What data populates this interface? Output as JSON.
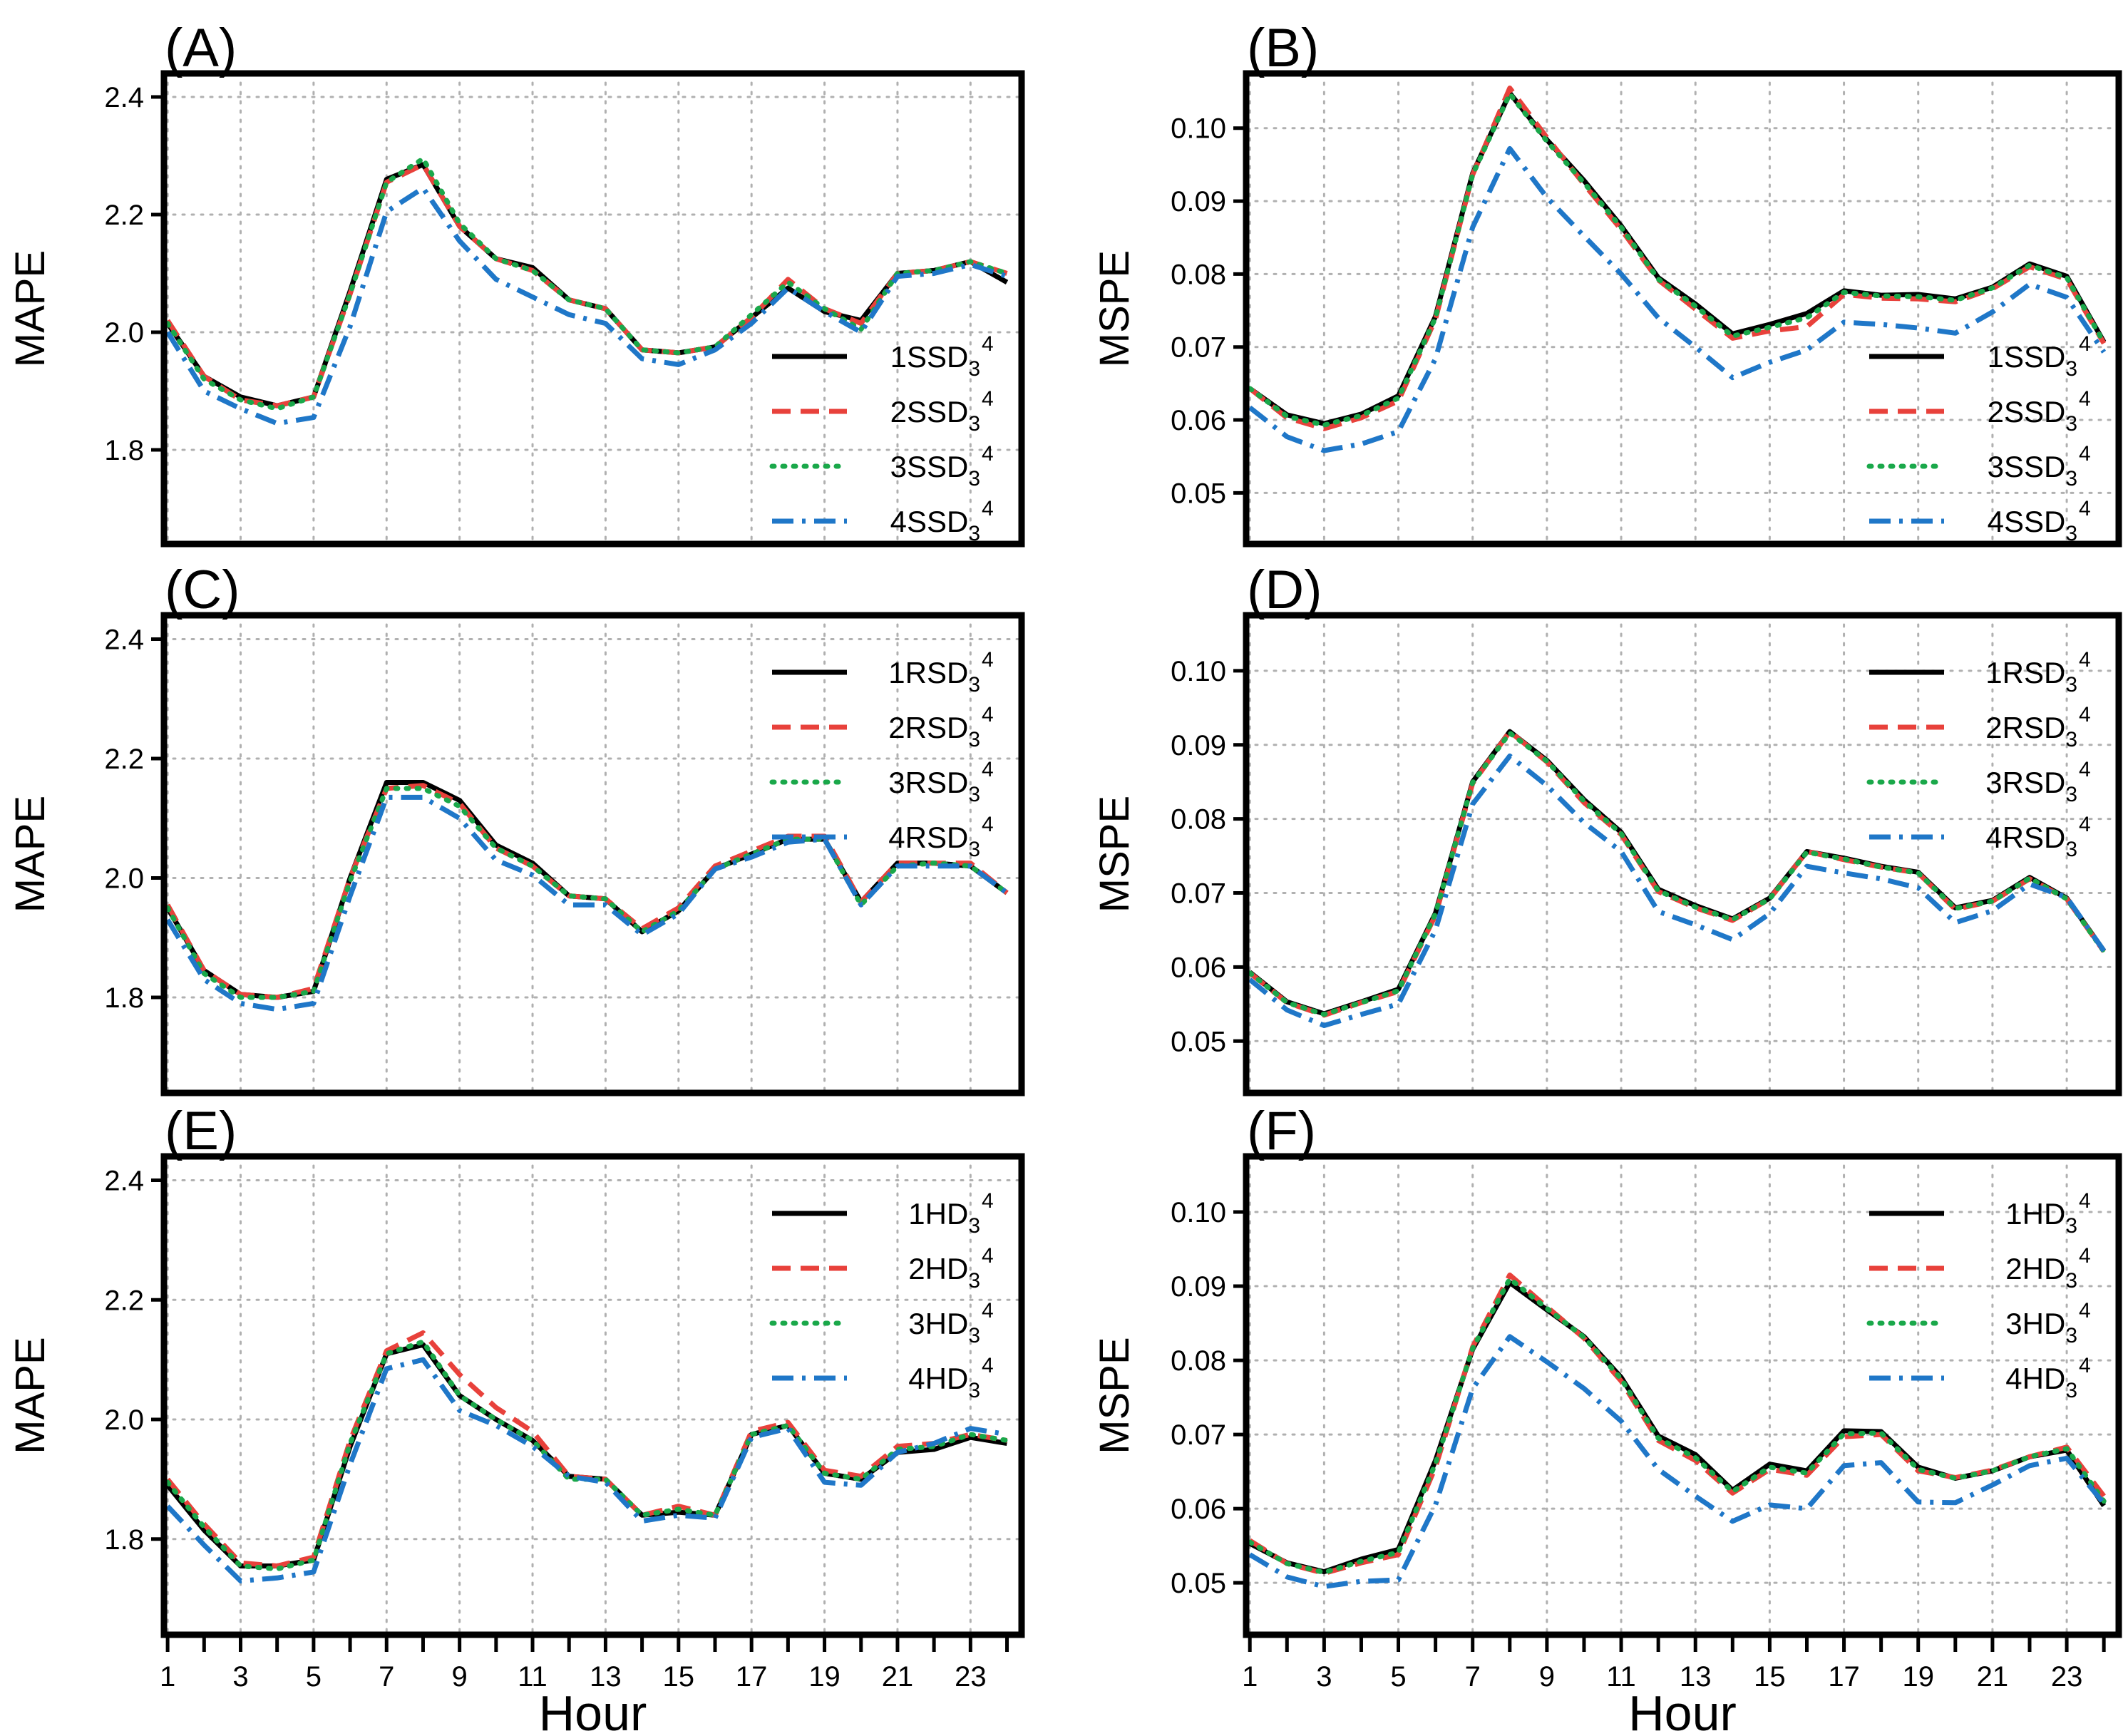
{
  "chart_data": [
    {
      "id": "A",
      "type": "line",
      "panel_label": "(A)",
      "ylabel": "MAPE",
      "xlabel": "",
      "ylim": [
        1.64,
        2.44
      ],
      "yticks": [
        "1.8",
        "2.0",
        "2.2",
        "2.4"
      ],
      "legend_position": "right",
      "x": [
        1,
        2,
        3,
        4,
        5,
        6,
        7,
        8,
        9,
        10,
        11,
        12,
        13,
        14,
        15,
        16,
        17,
        18,
        19,
        20,
        21,
        22,
        23,
        24
      ],
      "series": [
        {
          "name": "1SSD",
          "sup": "4",
          "sub": "3",
          "color": "#000000",
          "style": "solid",
          "values": [
            2.015,
            1.925,
            1.89,
            1.875,
            1.89,
            2.07,
            2.26,
            2.285,
            2.18,
            2.125,
            2.11,
            2.055,
            2.04,
            1.97,
            1.965,
            1.975,
            2.025,
            2.075,
            2.035,
            2.02,
            2.1,
            2.105,
            2.12,
            2.085
          ]
        },
        {
          "name": "2SSD",
          "sup": "4",
          "sub": "3",
          "color": "#e8413b",
          "style": "dashed",
          "values": [
            2.02,
            1.925,
            1.885,
            1.875,
            1.89,
            2.065,
            2.255,
            2.285,
            2.18,
            2.125,
            2.105,
            2.055,
            2.04,
            1.97,
            1.965,
            1.975,
            2.025,
            2.09,
            2.04,
            2.015,
            2.1,
            2.105,
            2.12,
            2.1
          ]
        },
        {
          "name": "3SSD",
          "sup": "4",
          "sub": "3",
          "color": "#1aa84a",
          "style": "dotted",
          "values": [
            2.015,
            1.92,
            1.885,
            1.87,
            1.89,
            2.065,
            2.255,
            2.295,
            2.185,
            2.125,
            2.105,
            2.055,
            2.04,
            1.97,
            1.965,
            1.975,
            2.03,
            2.085,
            2.04,
            2.005,
            2.1,
            2.105,
            2.12,
            2.1
          ]
        },
        {
          "name": "4SSD",
          "sup": "4",
          "sub": "3",
          "color": "#1f77c8",
          "style": "dashdot",
          "values": [
            2.0,
            1.9,
            1.87,
            1.845,
            1.855,
            2.01,
            2.205,
            2.245,
            2.155,
            2.09,
            2.06,
            2.03,
            2.015,
            1.955,
            1.945,
            1.97,
            2.015,
            2.075,
            2.035,
            2.0,
            2.095,
            2.1,
            2.115,
            2.095
          ]
        }
      ]
    },
    {
      "id": "B",
      "type": "line",
      "panel_label": "(B)",
      "ylabel": "MSPE",
      "xlabel": "",
      "ylim": [
        0.043,
        0.1075
      ],
      "yticks": [
        "0.05",
        "0.06",
        "0.07",
        "0.08",
        "0.09",
        "0.10"
      ],
      "legend_position": "right",
      "x": [
        1,
        2,
        3,
        4,
        5,
        6,
        7,
        8,
        9,
        10,
        11,
        12,
        13,
        14,
        15,
        16,
        17,
        18,
        19,
        20,
        21,
        22,
        23,
        24
      ],
      "series": [
        {
          "name": "1SSD",
          "sup": "4",
          "sub": "3",
          "color": "#000000",
          "style": "solid",
          "values": [
            0.0643,
            0.0607,
            0.0595,
            0.0608,
            0.0633,
            0.0742,
            0.0938,
            0.1048,
            0.0984,
            0.0928,
            0.0866,
            0.0795,
            0.0759,
            0.0718,
            0.0731,
            0.0746,
            0.0777,
            0.0771,
            0.0772,
            0.0766,
            0.0782,
            0.0814,
            0.0797,
            0.0707
          ]
        },
        {
          "name": "2SSD",
          "sup": "4",
          "sub": "3",
          "color": "#e8413b",
          "style": "dashed",
          "values": [
            0.0643,
            0.0603,
            0.0588,
            0.0603,
            0.0626,
            0.0738,
            0.0936,
            0.1055,
            0.0987,
            0.0923,
            0.0861,
            0.0792,
            0.0752,
            0.0712,
            0.0722,
            0.0728,
            0.0772,
            0.0767,
            0.0766,
            0.0762,
            0.078,
            0.081,
            0.0793,
            0.0705
          ]
        },
        {
          "name": "3SSD",
          "sup": "4",
          "sub": "3",
          "color": "#1aa84a",
          "style": "dotted",
          "values": [
            0.0643,
            0.0605,
            0.0593,
            0.0606,
            0.063,
            0.074,
            0.0936,
            0.1047,
            0.0982,
            0.0925,
            0.0864,
            0.0793,
            0.0756,
            0.0715,
            0.0727,
            0.074,
            0.0775,
            0.077,
            0.0769,
            0.0764,
            0.0781,
            0.0812,
            0.0795,
            0.0706
          ]
        },
        {
          "name": "4SSD",
          "sup": "4",
          "sub": "3",
          "color": "#1f77c8",
          "style": "dashdot",
          "values": [
            0.0617,
            0.0577,
            0.0558,
            0.0567,
            0.0584,
            0.0684,
            0.0864,
            0.0972,
            0.0905,
            0.0852,
            0.08,
            0.074,
            0.07,
            0.0658,
            0.0679,
            0.0696,
            0.0734,
            0.0731,
            0.0726,
            0.0719,
            0.0748,
            0.0786,
            0.0768,
            0.0693
          ]
        }
      ]
    },
    {
      "id": "C",
      "type": "line",
      "panel_label": "(C)",
      "ylabel": "MAPE",
      "xlabel": "",
      "ylim": [
        1.64,
        2.44
      ],
      "yticks": [
        "1.8",
        "2.0",
        "2.2",
        "2.4"
      ],
      "legend_position": "top-right",
      "x": [
        1,
        2,
        3,
        4,
        5,
        6,
        7,
        8,
        9,
        10,
        11,
        12,
        13,
        14,
        15,
        16,
        17,
        18,
        19,
        20,
        21,
        22,
        23,
        24
      ],
      "series": [
        {
          "name": "1RSD",
          "sup": "4",
          "sub": "3",
          "color": "#000000",
          "style": "solid",
          "values": [
            1.95,
            1.845,
            1.805,
            1.8,
            1.81,
            2.0,
            2.16,
            2.16,
            2.13,
            2.055,
            2.025,
            1.97,
            1.965,
            1.91,
            1.945,
            2.015,
            2.04,
            2.065,
            2.065,
            1.96,
            2.025,
            2.025,
            2.02,
            1.975
          ]
        },
        {
          "name": "2RSD",
          "sup": "4",
          "sub": "3",
          "color": "#e8413b",
          "style": "dashed",
          "values": [
            1.955,
            1.845,
            1.805,
            1.8,
            1.815,
            2.0,
            2.15,
            2.155,
            2.125,
            2.05,
            2.02,
            1.97,
            1.965,
            1.915,
            1.95,
            2.02,
            2.045,
            2.07,
            2.07,
            1.96,
            2.025,
            2.025,
            2.025,
            1.975
          ]
        },
        {
          "name": "3RSD",
          "sup": "4",
          "sub": "3",
          "color": "#1aa84a",
          "style": "dotted",
          "values": [
            1.95,
            1.84,
            1.8,
            1.8,
            1.81,
            1.995,
            2.15,
            2.15,
            2.12,
            2.05,
            2.02,
            1.97,
            1.965,
            1.91,
            1.945,
            2.015,
            2.04,
            2.065,
            2.065,
            1.955,
            2.02,
            2.025,
            2.02,
            1.975
          ]
        },
        {
          "name": "4RSD",
          "sup": "4",
          "sub": "3",
          "color": "#1f77c8",
          "style": "dashdot",
          "values": [
            1.93,
            1.83,
            1.79,
            1.78,
            1.79,
            1.97,
            2.135,
            2.135,
            2.1,
            2.03,
            2.005,
            1.955,
            1.955,
            1.905,
            1.94,
            2.015,
            2.035,
            2.06,
            2.065,
            1.955,
            2.02,
            2.02,
            2.02,
            1.975
          ]
        }
      ]
    },
    {
      "id": "D",
      "type": "line",
      "panel_label": "(D)",
      "ylabel": "MSPE",
      "xlabel": "",
      "ylim": [
        0.043,
        0.1075
      ],
      "yticks": [
        "0.05",
        "0.06",
        "0.07",
        "0.08",
        "0.09",
        "0.10"
      ],
      "legend_position": "top-right",
      "x": [
        1,
        2,
        3,
        4,
        5,
        6,
        7,
        8,
        9,
        10,
        11,
        12,
        13,
        14,
        15,
        16,
        17,
        18,
        19,
        20,
        21,
        22,
        23,
        24
      ],
      "series": [
        {
          "name": "1RSD",
          "sup": "4",
          "sub": "3",
          "color": "#000000",
          "style": "solid",
          "values": [
            0.0593,
            0.0553,
            0.0537,
            0.0553,
            0.057,
            0.0673,
            0.085,
            0.0918,
            0.0879,
            0.0826,
            0.0782,
            0.0705,
            0.0683,
            0.0665,
            0.0693,
            0.0756,
            0.0747,
            0.0736,
            0.0728,
            0.068,
            0.069,
            0.0721,
            0.0693,
            0.0622
          ]
        },
        {
          "name": "2RSD",
          "sup": "4",
          "sub": "3",
          "color": "#e8413b",
          "style": "dashed",
          "values": [
            0.0592,
            0.0552,
            0.0535,
            0.0552,
            0.0567,
            0.067,
            0.0848,
            0.0918,
            0.0877,
            0.0822,
            0.0779,
            0.0702,
            0.068,
            0.0663,
            0.0692,
            0.0756,
            0.0745,
            0.0735,
            0.0727,
            0.0678,
            0.0689,
            0.0719,
            0.0692,
            0.0621
          ]
        },
        {
          "name": "3RSD",
          "sup": "4",
          "sub": "3",
          "color": "#1aa84a",
          "style": "dotted",
          "values": [
            0.0592,
            0.0552,
            0.0536,
            0.0552,
            0.0568,
            0.0672,
            0.0849,
            0.0916,
            0.0878,
            0.0824,
            0.078,
            0.0703,
            0.0681,
            0.0664,
            0.0692,
            0.0755,
            0.0746,
            0.0735,
            0.0727,
            0.0679,
            0.0689,
            0.072,
            0.0692,
            0.0621
          ]
        },
        {
          "name": "4RSD",
          "sup": "4",
          "sub": "3",
          "color": "#1f77c8",
          "style": "dashdot",
          "values": [
            0.0583,
            0.0542,
            0.0521,
            0.0536,
            0.055,
            0.065,
            0.082,
            0.0885,
            0.0845,
            0.0795,
            0.0756,
            0.0675,
            0.0657,
            0.0637,
            0.0672,
            0.0736,
            0.0727,
            0.0719,
            0.0707,
            0.066,
            0.0676,
            0.0712,
            0.0694,
            0.0622
          ]
        }
      ]
    },
    {
      "id": "E",
      "type": "line",
      "panel_label": "(E)",
      "ylabel": "MAPE",
      "xlabel": "Hour",
      "ylim": [
        1.64,
        2.44
      ],
      "yticks": [
        "1.8",
        "2.0",
        "2.2",
        "2.4"
      ],
      "legend_position": "top-right",
      "xticks": [
        "1",
        "3",
        "5",
        "7",
        "9",
        "11",
        "13",
        "15",
        "17",
        "19",
        "21",
        "23"
      ],
      "x": [
        1,
        2,
        3,
        4,
        5,
        6,
        7,
        8,
        9,
        10,
        11,
        12,
        13,
        14,
        15,
        16,
        17,
        18,
        19,
        20,
        21,
        22,
        23,
        24
      ],
      "series": [
        {
          "name": "1HD",
          "sup": "4",
          "sub": "3",
          "color": "#000000",
          "style": "solid",
          "values": [
            1.89,
            1.815,
            1.755,
            1.755,
            1.765,
            1.955,
            2.11,
            2.125,
            2.04,
            2.0,
            1.965,
            1.905,
            1.9,
            1.84,
            1.845,
            1.84,
            1.975,
            1.99,
            1.91,
            1.9,
            1.945,
            1.95,
            1.97,
            1.96
          ]
        },
        {
          "name": "2HD",
          "sup": "4",
          "sub": "3",
          "color": "#e8413b",
          "style": "dashed",
          "values": [
            1.9,
            1.825,
            1.76,
            1.755,
            1.77,
            1.965,
            2.115,
            2.145,
            2.075,
            2.02,
            1.98,
            1.905,
            1.9,
            1.84,
            1.855,
            1.84,
            1.98,
            1.995,
            1.915,
            1.905,
            1.955,
            1.96,
            1.975,
            1.965
          ]
        },
        {
          "name": "3HD",
          "sup": "4",
          "sub": "3",
          "color": "#1aa84a",
          "style": "dotted",
          "values": [
            1.895,
            1.82,
            1.755,
            1.75,
            1.765,
            1.96,
            2.11,
            2.13,
            2.04,
            2.0,
            1.965,
            1.9,
            1.9,
            1.84,
            1.85,
            1.84,
            1.975,
            1.99,
            1.91,
            1.9,
            1.95,
            1.955,
            1.975,
            1.965
          ]
        },
        {
          "name": "4HD",
          "sup": "4",
          "sub": "3",
          "color": "#1f77c8",
          "style": "dashdot",
          "values": [
            1.855,
            1.79,
            1.73,
            1.735,
            1.745,
            1.925,
            2.085,
            2.1,
            2.015,
            1.99,
            1.955,
            1.905,
            1.895,
            1.83,
            1.84,
            1.835,
            1.97,
            1.985,
            1.895,
            1.89,
            1.945,
            1.96,
            1.985,
            1.975
          ]
        }
      ]
    },
    {
      "id": "F",
      "type": "line",
      "panel_label": "(F)",
      "ylabel": "MSPE",
      "xlabel": "Hour",
      "ylim": [
        0.043,
        0.1075
      ],
      "yticks": [
        "0.05",
        "0.06",
        "0.07",
        "0.08",
        "0.09",
        "0.10"
      ],
      "legend_position": "top-right",
      "xticks": [
        "1",
        "3",
        "5",
        "7",
        "9",
        "11",
        "13",
        "15",
        "17",
        "19",
        "21",
        "23"
      ],
      "x": [
        1,
        2,
        3,
        4,
        5,
        6,
        7,
        8,
        9,
        10,
        11,
        12,
        13,
        14,
        15,
        16,
        17,
        18,
        19,
        20,
        21,
        22,
        23,
        24
      ],
      "series": [
        {
          "name": "1HD",
          "sup": "4",
          "sub": "3",
          "color": "#000000",
          "style": "solid",
          "values": [
            0.0553,
            0.0527,
            0.0515,
            0.0532,
            0.0545,
            0.0665,
            0.0815,
            0.0905,
            0.0868,
            0.0832,
            0.0777,
            0.0698,
            0.0673,
            0.0625,
            0.066,
            0.0651,
            0.0705,
            0.0704,
            0.0656,
            0.0641,
            0.0651,
            0.067,
            0.0679,
            0.0604
          ]
        },
        {
          "name": "2HD",
          "sup": "4",
          "sub": "3",
          "color": "#e8413b",
          "style": "dashed",
          "values": [
            0.0557,
            0.0526,
            0.0513,
            0.0527,
            0.0538,
            0.0656,
            0.0818,
            0.0915,
            0.0872,
            0.083,
            0.0772,
            0.0692,
            0.0665,
            0.0621,
            0.0653,
            0.0645,
            0.0697,
            0.07,
            0.0651,
            0.0642,
            0.0652,
            0.067,
            0.0683,
            0.0617
          ]
        },
        {
          "name": "3HD",
          "sup": "4",
          "sub": "3",
          "color": "#1aa84a",
          "style": "dotted",
          "values": [
            0.0555,
            0.0526,
            0.0514,
            0.0529,
            0.0541,
            0.0661,
            0.0816,
            0.091,
            0.087,
            0.0831,
            0.0775,
            0.0695,
            0.0669,
            0.0623,
            0.0656,
            0.0648,
            0.0701,
            0.0702,
            0.0653,
            0.0641,
            0.0651,
            0.067,
            0.0681,
            0.061
          ]
        },
        {
          "name": "4HD",
          "sup": "4",
          "sub": "3",
          "color": "#1f77c8",
          "style": "dashdot",
          "values": [
            0.0538,
            0.0508,
            0.0495,
            0.0502,
            0.0504,
            0.0605,
            0.0762,
            0.0832,
            0.0798,
            0.0762,
            0.0718,
            0.0653,
            0.0617,
            0.0583,
            0.0605,
            0.06,
            0.0658,
            0.0662,
            0.0609,
            0.0608,
            0.0632,
            0.0658,
            0.0668,
            0.0607
          ]
        }
      ]
    }
  ]
}
